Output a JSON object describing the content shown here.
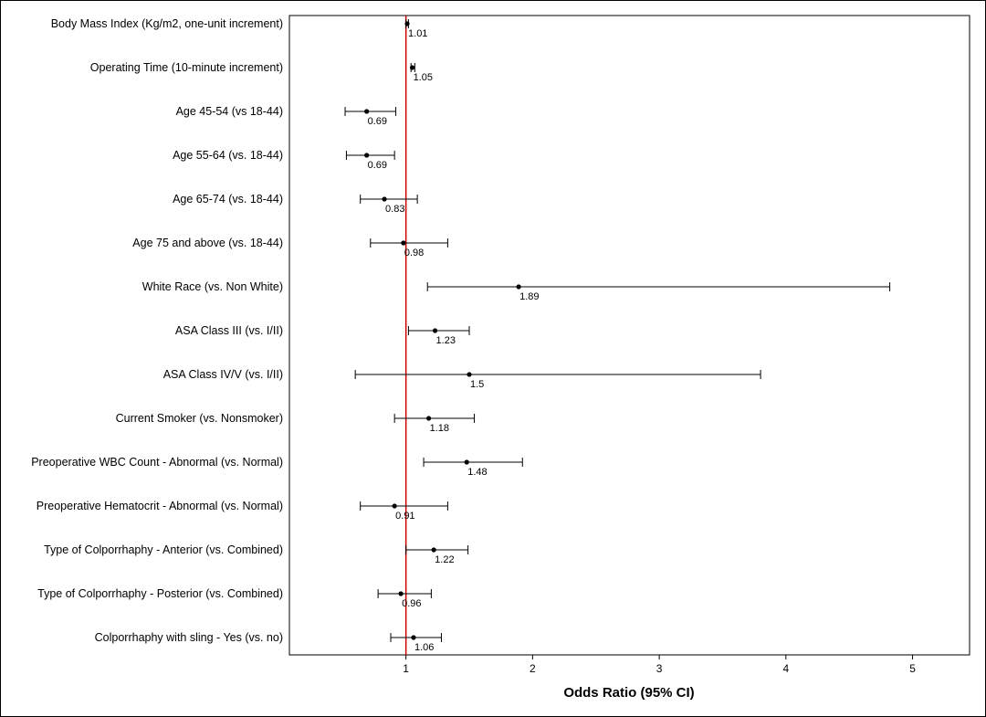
{
  "chart_data": {
    "type": "forest",
    "xlabel": "Odds Ratio (95% CI)",
    "xlim": [
      0.08,
      5.45
    ],
    "xticks": [
      1,
      2,
      3,
      4,
      5
    ],
    "reference_line": 1,
    "reference_color": "#cc0000",
    "mark_color": "#000000",
    "grid": false,
    "rows": [
      {
        "label": "Body Mass Index (Kg/m2, one-unit increment)",
        "or": 1.01,
        "lo": 1.0,
        "hi": 1.02,
        "value_label": "1.01"
      },
      {
        "label": "Operating Time (10-minute increment)",
        "or": 1.05,
        "lo": 1.04,
        "hi": 1.07,
        "value_label": "1.05"
      },
      {
        "label": "Age 45-54 (vs 18-44)",
        "or": 0.69,
        "lo": 0.52,
        "hi": 0.92,
        "value_label": "0.69"
      },
      {
        "label": "Age 55-64 (vs. 18-44)",
        "or": 0.69,
        "lo": 0.53,
        "hi": 0.91,
        "value_label": "0.69"
      },
      {
        "label": "Age 65-74 (vs. 18-44)",
        "or": 0.83,
        "lo": 0.64,
        "hi": 1.09,
        "value_label": "0.83"
      },
      {
        "label": "Age 75 and above (vs. 18-44)",
        "or": 0.98,
        "lo": 0.72,
        "hi": 1.33,
        "value_label": "0.98"
      },
      {
        "label": "White Race (vs. Non White)",
        "or": 1.89,
        "lo": 1.17,
        "hi": 4.82,
        "value_label": "1.89"
      },
      {
        "label": "ASA Class III (vs. I/II)",
        "or": 1.23,
        "lo": 1.02,
        "hi": 1.5,
        "value_label": "1.23"
      },
      {
        "label": "ASA Class IV/V (vs. I/II)",
        "or": 1.5,
        "lo": 0.6,
        "hi": 3.8,
        "value_label": "1.5"
      },
      {
        "label": "Current Smoker (vs. Nonsmoker)",
        "or": 1.18,
        "lo": 0.91,
        "hi": 1.54,
        "value_label": "1.18"
      },
      {
        "label": "Preoperative WBC Count - Abnormal (vs. Normal)",
        "or": 1.48,
        "lo": 1.14,
        "hi": 1.92,
        "value_label": "1.48"
      },
      {
        "label": "Preoperative Hematocrit - Abnormal (vs. Normal)",
        "or": 0.91,
        "lo": 0.64,
        "hi": 1.33,
        "value_label": "0.91"
      },
      {
        "label": "Type of Colporrhaphy - Anterior (vs. Combined)",
        "or": 1.22,
        "lo": 1.0,
        "hi": 1.49,
        "value_label": "1.22"
      },
      {
        "label": "Type of Colporrhaphy - Posterior (vs. Combined)",
        "or": 0.96,
        "lo": 0.78,
        "hi": 1.2,
        "value_label": "0.96"
      },
      {
        "label": "Colporrhaphy with sling - Yes (vs. no)",
        "or": 1.06,
        "lo": 0.88,
        "hi": 1.28,
        "value_label": "1.06"
      }
    ]
  }
}
